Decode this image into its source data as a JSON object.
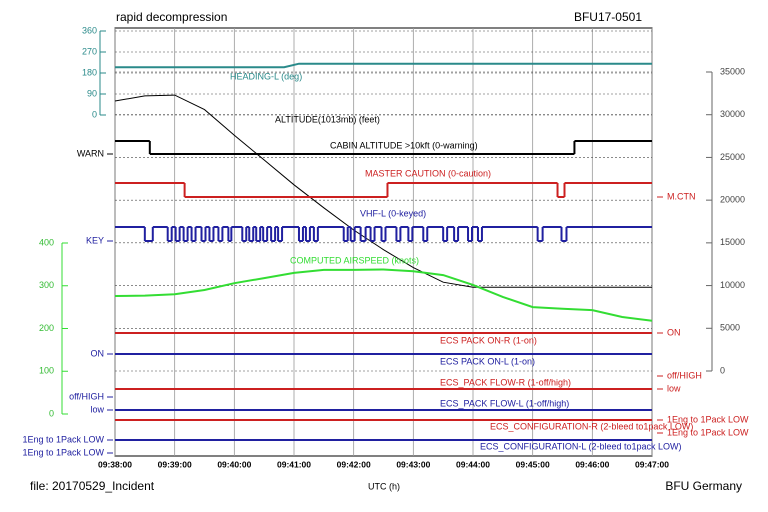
{
  "chart_data": {
    "type": "line",
    "title": "rapid decompression",
    "subtitle": "BFU17-0501",
    "file_label": "file: 20170529_Incident",
    "x_label": "UTC (h)",
    "source": "BFU Germany",
    "xlim": [
      "09:38:00",
      "09:47:00"
    ],
    "xticks": [
      "09:38:00",
      "09:39:00",
      "09:40:00",
      "09:41:00",
      "09:42:00",
      "09:43:00",
      "09:44:00",
      "09:45:00",
      "09:46:00",
      "09:47:00"
    ],
    "ylim": [
      0,
      360
    ],
    "yticks": [
      0,
      90,
      180,
      270,
      360
    ],
    "y2lim": [
      0,
      35000
    ],
    "y2ticks": [
      0,
      5000,
      10000,
      15000,
      20000,
      25000,
      30000,
      35000
    ],
    "y3lim": [
      0,
      400
    ],
    "y3ticks": [
      0,
      100,
      200,
      300,
      400
    ],
    "grid": true,
    "series": [
      {
        "name": "HEADING-L (deg)",
        "color": "#2a8a8a",
        "axis": "y",
        "x": [
          "09:38:00",
          "09:40:50",
          "09:41:05",
          "09:47:00"
        ],
        "values": [
          205,
          205,
          220,
          220
        ]
      },
      {
        "name": "ALTITUDE(1013mb) (feet)",
        "color": "#000000",
        "axis": "y2",
        "x": [
          "09:38:00",
          "09:38:30",
          "09:39:00",
          "09:39:30",
          "09:40:00",
          "09:40:30",
          "09:41:00",
          "09:41:30",
          "09:42:00",
          "09:42:30",
          "09:43:00",
          "09:43:30",
          "09:44:00",
          "09:45:00",
          "09:46:00",
          "09:47:00"
        ],
        "values": [
          31600,
          32200,
          32300,
          30600,
          27600,
          24700,
          21800,
          19100,
          16500,
          14200,
          12100,
          10400,
          9800,
          9800,
          9800,
          9800
        ]
      },
      {
        "name": "CABIN ALTITUDE >10kft (0-warning)",
        "color": "#000000",
        "axis": "discrete",
        "label_side": "left",
        "state_labels": [
          "WARN",
          null
        ],
        "x": [
          "09:38:00",
          "09:38:35",
          "09:45:42"
        ],
        "values": [
          1,
          0,
          1
        ]
      },
      {
        "name": "MASTER CAUTION (0-caution)",
        "color": "#cc2020",
        "axis": "discrete",
        "label_side": "right",
        "state_labels": [
          "M.CTN",
          null
        ],
        "x": [
          "09:38:00",
          "09:39:10",
          "09:42:34",
          "09:45:25",
          "09:45:32"
        ],
        "values": [
          1,
          0,
          1,
          0,
          1
        ]
      },
      {
        "name": "VHF-L (0-keyed)",
        "color": "#2020a0",
        "axis": "discrete",
        "label_side": "left",
        "state_labels": [
          "KEY",
          null
        ],
        "x": [
          "09:38:00",
          "09:38:30",
          "09:38:38",
          "09:38:53",
          "09:38:57",
          "09:39:01",
          "09:39:05",
          "09:39:09",
          "09:39:13",
          "09:39:17",
          "09:39:21",
          "09:39:27",
          "09:39:31",
          "09:39:35",
          "09:39:39",
          "09:39:44",
          "09:39:48",
          "09:39:54",
          "09:39:57",
          "09:40:08",
          "09:40:12",
          "09:40:15",
          "09:40:19",
          "09:40:22",
          "09:40:26",
          "09:40:29",
          "09:40:33",
          "09:40:37",
          "09:40:41",
          "09:40:44",
          "09:40:48",
          "09:41:05",
          "09:41:09",
          "09:41:12",
          "09:41:16",
          "09:41:20",
          "09:41:24",
          "09:41:50",
          "09:41:54",
          "09:41:57",
          "09:42:01",
          "09:42:07",
          "09:42:12",
          "09:42:17",
          "09:42:21",
          "09:42:28",
          "09:42:32",
          "09:42:43",
          "09:42:47",
          "09:42:55",
          "09:42:59",
          "09:43:10",
          "09:43:14",
          "09:43:30",
          "09:43:34",
          "09:43:41",
          "09:43:45",
          "09:43:55",
          "09:43:59",
          "09:44:05",
          "09:44:09",
          "09:45:05",
          "09:45:10",
          "09:45:29",
          "09:45:34"
        ],
        "values": [
          1,
          0,
          1,
          0,
          1,
          0,
          1,
          0,
          1,
          0,
          1,
          0,
          1,
          0,
          1,
          0,
          1,
          0,
          1,
          0,
          1,
          0,
          1,
          0,
          1,
          0,
          1,
          0,
          1,
          0,
          1,
          0,
          1,
          0,
          1,
          0,
          1,
          0,
          1,
          0,
          1,
          0,
          1,
          0,
          1,
          0,
          1,
          0,
          1,
          0,
          1,
          0,
          1,
          0,
          1,
          0,
          1,
          0,
          1,
          0,
          1,
          0,
          1,
          0,
          1
        ]
      },
      {
        "name": "COMPUTED AIRSPEED (knots)",
        "color": "#33dd33",
        "axis": "y3",
        "x": [
          "09:38:00",
          "09:38:30",
          "09:39:00",
          "09:39:30",
          "09:40:00",
          "09:40:30",
          "09:41:00",
          "09:41:30",
          "09:42:00",
          "09:42:30",
          "09:43:00",
          "09:43:30",
          "09:44:00",
          "09:44:30",
          "09:45:00",
          "09:45:30",
          "09:46:00",
          "09:46:30",
          "09:47:00"
        ],
        "values": [
          276,
          277,
          280,
          290,
          306,
          318,
          330,
          337,
          337,
          338,
          334,
          325,
          302,
          274,
          250,
          246,
          243,
          227,
          218
        ]
      },
      {
        "name": "ECS PACK ON-R (1-on)",
        "color": "#cc2020",
        "axis": "discrete",
        "label_side": "right",
        "state_labels": [
          null,
          "ON"
        ],
        "x": [
          "09:38:00"
        ],
        "values": [
          1
        ]
      },
      {
        "name": "ECS PACK ON-L (1-on)",
        "color": "#2020a0",
        "axis": "discrete",
        "label_side": "left",
        "state_labels": [
          null,
          "ON"
        ],
        "x": [
          "09:38:00"
        ],
        "values": [
          1
        ]
      },
      {
        "name": "ECS_PACK FLOW-R (1-off/high)",
        "color": "#cc2020",
        "axis": "discrete",
        "label_side": "right",
        "state_labels": [
          "low",
          "off/HIGH"
        ],
        "x": [
          "09:38:00"
        ],
        "values": [
          0
        ]
      },
      {
        "name": "ECS_PACK FLOW-L (1-off/high)",
        "color": "#2020a0",
        "axis": "discrete",
        "label_side": "left",
        "state_labels": [
          "low",
          "off/HIGH"
        ],
        "x": [
          "09:38:00"
        ],
        "values": [
          0
        ]
      },
      {
        "name": "ECS_CONFIGURATION-R (2-bleed to1pack LOW)",
        "color": "#cc2020",
        "axis": "discrete",
        "label_side": "right",
        "state_labels": [
          "1Eng to 1Pack LOW",
          "1Eng to 1Pack LOW"
        ],
        "x": [
          "09:38:00"
        ],
        "values": [
          1
        ]
      },
      {
        "name": "ECS_CONFIGURATION-L (2-bleed to1pack LOW)",
        "color": "#2020a0",
        "axis": "discrete",
        "label_side": "left",
        "state_labels": [
          "1Eng to 1Pack LOW",
          "1Eng to 1Pack LOW"
        ],
        "x": [
          "09:38:00"
        ],
        "values": [
          1
        ]
      }
    ]
  }
}
